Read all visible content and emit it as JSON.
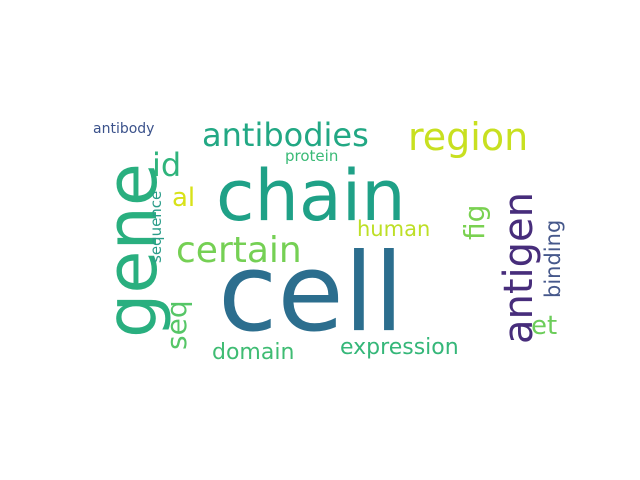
{
  "wordcloud": {
    "words": [
      {
        "text": "cell",
        "color": "#2c6e8e"
      },
      {
        "text": "chain",
        "color": "#1fa187"
      },
      {
        "text": "gene",
        "color": "#29af7f"
      },
      {
        "text": "antibodies",
        "color": "#22a884"
      },
      {
        "text": "region",
        "color": "#c8e020"
      },
      {
        "text": "antigen",
        "color": "#472d7b"
      },
      {
        "text": "certain",
        "color": "#75d054"
      },
      {
        "text": "seq",
        "color": "#56c667"
      },
      {
        "text": "id",
        "color": "#2fb47c"
      },
      {
        "text": "fig",
        "color": "#7ad151"
      },
      {
        "text": "al",
        "color": "#d8e219"
      },
      {
        "text": "expression",
        "color": "#35b779"
      },
      {
        "text": "domain",
        "color": "#3fbc73"
      },
      {
        "text": "et",
        "color": "#6ccd5a"
      },
      {
        "text": "human",
        "color": "#bddf26"
      },
      {
        "text": "binding",
        "color": "#46588b"
      },
      {
        "text": "protein",
        "color": "#3aba76"
      },
      {
        "text": "sequence",
        "color": "#2a9c89"
      },
      {
        "text": "antibody",
        "color": "#3b528b"
      }
    ]
  }
}
